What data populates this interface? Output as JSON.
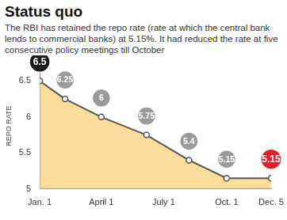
{
  "chart_data": {
    "type": "line",
    "title": "Status quo",
    "subtitle": "The RBI has retained the repo rate (rate at which the central bank lends to commercial banks) at 5.15%. It had reduced the rate at five consecutive policy meetings till October",
    "y_label": "REPO RATE",
    "x": [
      0,
      37,
      90,
      156,
      218,
      273,
      338
    ],
    "values": [
      6.5,
      6.25,
      6,
      5.75,
      5.4,
      5.15,
      5.15
    ],
    "color": "#555555",
    "colors": [
      "#1a1a1a",
      "#9a9a9a",
      "#9a9a9a",
      "#9a9a9a",
      "#9a9a9a",
      "#9a9a9a",
      "#e3202a"
    ],
    "xlim": [
      0,
      338
    ],
    "xticks": [
      {
        "value": 0,
        "label": "Jan. 1"
      },
      {
        "value": 90,
        "label": "April 1"
      },
      {
        "value": 181,
        "label": "July 1"
      },
      {
        "value": 273,
        "label": "Oct. 1"
      },
      {
        "value": 338,
        "label": "Dec. 5"
      }
    ],
    "ylim": [
      5,
      6.75
    ],
    "yticks": [
      5,
      5.5,
      6,
      6.5
    ],
    "grid": false,
    "data_labels": true
  }
}
